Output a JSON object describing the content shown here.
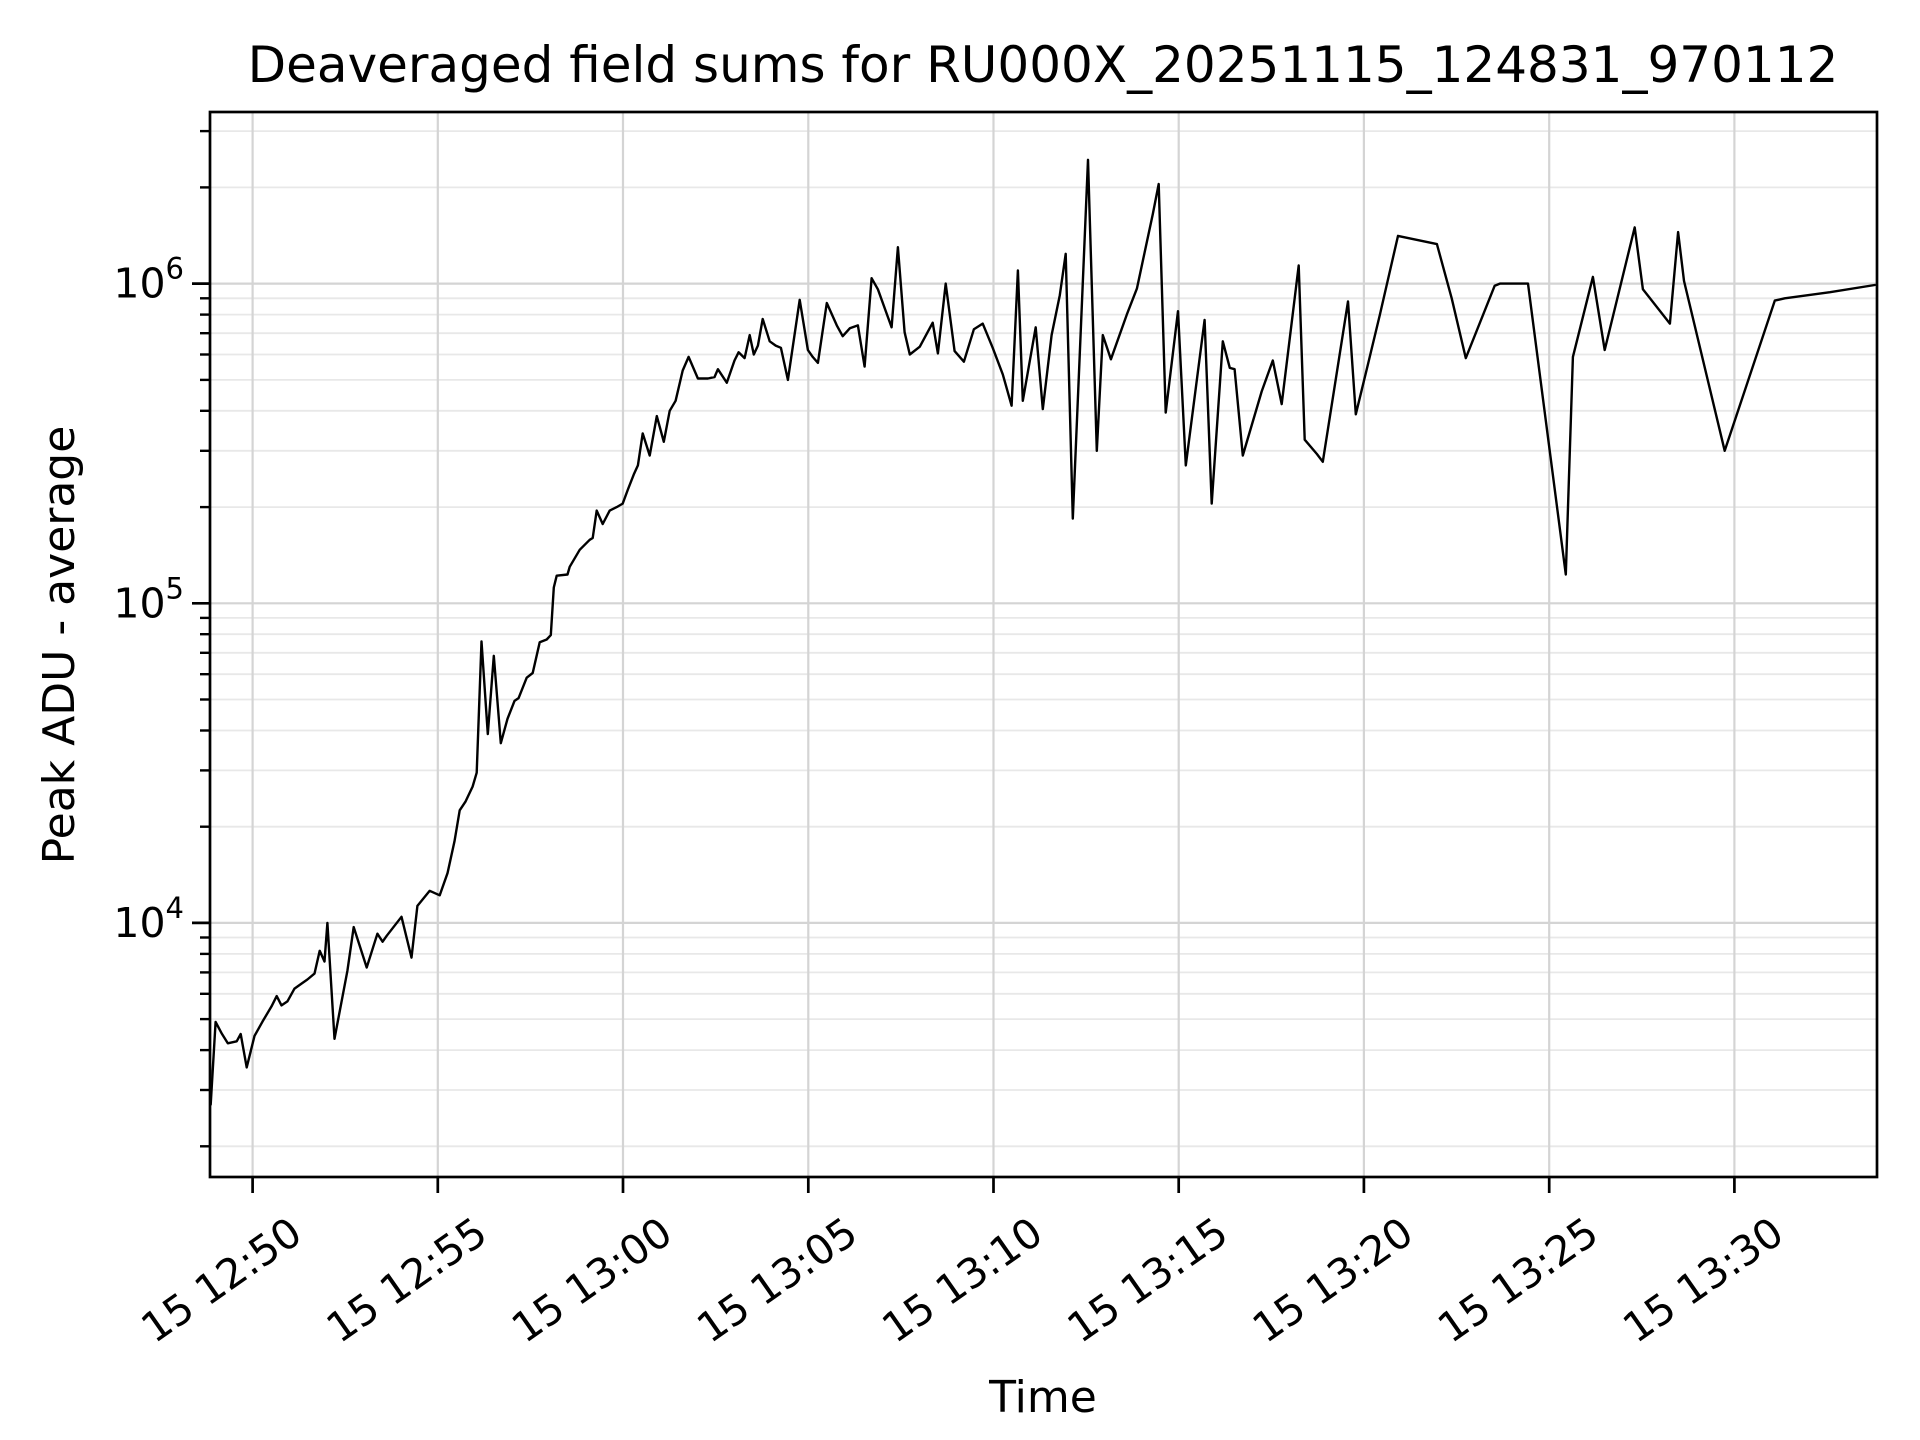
{
  "chart_data": {
    "type": "line",
    "title": "Deaveraged field sums for RU000X_20251115_124831_970112",
    "xlabel": "Time",
    "ylabel": "Peak ADU - average",
    "legend": null,
    "grid": true,
    "background_color": "#ffffff",
    "line_color": "#000000",
    "grid_major_color": "#d4d4d4",
    "grid_minor_color": "#e8e8e8",
    "y_scale": "log",
    "axis": {
      "t_min": 768.85,
      "t_max": 813.85,
      "log_min": 3.205,
      "log_max": 6.537
    },
    "x_ticks": [
      {
        "t": 770,
        "label": "15 12:50"
      },
      {
        "t": 775,
        "label": "15 12:55"
      },
      {
        "t": 780,
        "label": "15 13:00"
      },
      {
        "t": 785,
        "label": "15 13:05"
      },
      {
        "t": 790,
        "label": "15 13:10"
      },
      {
        "t": 795,
        "label": "15 13:15"
      },
      {
        "t": 800,
        "label": "15 13:20"
      },
      {
        "t": 805,
        "label": "15 13:25"
      },
      {
        "t": 810,
        "label": "15 13:30"
      }
    ],
    "y_ticks": [
      {
        "value": 10000,
        "base": "10",
        "exp": "4"
      },
      {
        "value": 100000,
        "base": "10",
        "exp": "5"
      },
      {
        "value": 1000000,
        "base": "10",
        "exp": "6"
      }
    ],
    "series": [
      {
        "name": "Peak ADU - average",
        "points": [
          [
            768.87,
            2700
          ],
          [
            769.0,
            4900
          ],
          [
            769.16,
            4520
          ],
          [
            769.33,
            4200
          ],
          [
            769.57,
            4260
          ],
          [
            769.68,
            4490
          ],
          [
            769.84,
            3530
          ],
          [
            770.05,
            4430
          ],
          [
            770.27,
            4920
          ],
          [
            770.51,
            5480
          ],
          [
            770.65,
            5900
          ],
          [
            770.78,
            5520
          ],
          [
            770.94,
            5680
          ],
          [
            771.13,
            6230
          ],
          [
            771.32,
            6460
          ],
          [
            771.48,
            6650
          ],
          [
            771.67,
            6940
          ],
          [
            771.81,
            8180
          ],
          [
            771.94,
            7570
          ],
          [
            772.02,
            10000
          ],
          [
            772.21,
            4340
          ],
          [
            772.56,
            7080
          ],
          [
            772.73,
            9700
          ],
          [
            773.08,
            7250
          ],
          [
            773.37,
            9250
          ],
          [
            773.51,
            8730
          ],
          [
            773.62,
            9110
          ],
          [
            774.02,
            10450
          ],
          [
            774.29,
            7790
          ],
          [
            774.45,
            11300
          ],
          [
            774.78,
            12600
          ],
          [
            775.05,
            12200
          ],
          [
            775.26,
            14300
          ],
          [
            775.45,
            18000
          ],
          [
            775.59,
            22500
          ],
          [
            775.75,
            24000
          ],
          [
            775.94,
            26700
          ],
          [
            776.05,
            29500
          ],
          [
            776.18,
            76000
          ],
          [
            776.35,
            39000
          ],
          [
            776.51,
            68500
          ],
          [
            776.7,
            36500
          ],
          [
            776.88,
            43500
          ],
          [
            777.07,
            49500
          ],
          [
            777.18,
            50500
          ],
          [
            777.4,
            58500
          ],
          [
            777.56,
            60500
          ],
          [
            777.75,
            75500
          ],
          [
            777.94,
            77000
          ],
          [
            778.05,
            79500
          ],
          [
            778.13,
            112000
          ],
          [
            778.21,
            122000
          ],
          [
            778.5,
            123000
          ],
          [
            778.56,
            130000
          ],
          [
            778.83,
            147000
          ],
          [
            779.1,
            158000
          ],
          [
            779.18,
            160000
          ],
          [
            779.29,
            195000
          ],
          [
            779.45,
            177000
          ],
          [
            779.64,
            195000
          ],
          [
            779.83,
            200000
          ],
          [
            779.99,
            205000
          ],
          [
            780.13,
            227000
          ],
          [
            780.29,
            253000
          ],
          [
            780.4,
            270000
          ],
          [
            780.53,
            340000
          ],
          [
            780.72,
            290000
          ],
          [
            780.91,
            385000
          ],
          [
            781.1,
            320000
          ],
          [
            781.26,
            400000
          ],
          [
            781.42,
            430000
          ],
          [
            781.61,
            535000
          ],
          [
            781.77,
            590000
          ],
          [
            782.02,
            505000
          ],
          [
            782.29,
            505000
          ],
          [
            782.47,
            510000
          ],
          [
            782.56,
            540000
          ],
          [
            782.8,
            490000
          ],
          [
            783.01,
            575000
          ],
          [
            783.12,
            610000
          ],
          [
            783.28,
            585000
          ],
          [
            783.42,
            690000
          ],
          [
            783.53,
            600000
          ],
          [
            783.64,
            640000
          ],
          [
            783.77,
            775000
          ],
          [
            783.96,
            660000
          ],
          [
            784.12,
            640000
          ],
          [
            784.26,
            630000
          ],
          [
            784.45,
            500000
          ],
          [
            784.77,
            890000
          ],
          [
            784.99,
            620000
          ],
          [
            785.12,
            590000
          ],
          [
            785.26,
            565000
          ],
          [
            785.5,
            870000
          ],
          [
            785.77,
            740000
          ],
          [
            785.93,
            685000
          ],
          [
            786.12,
            725000
          ],
          [
            786.34,
            740000
          ],
          [
            786.52,
            550000
          ],
          [
            786.71,
            1040000
          ],
          [
            786.88,
            960000
          ],
          [
            787.25,
            730000
          ],
          [
            787.42,
            1300000
          ],
          [
            787.6,
            705000
          ],
          [
            787.74,
            600000
          ],
          [
            788.01,
            635000
          ],
          [
            788.36,
            755000
          ],
          [
            788.5,
            605000
          ],
          [
            788.71,
            1000000
          ],
          [
            788.95,
            615000
          ],
          [
            789.2,
            570000
          ],
          [
            789.47,
            720000
          ],
          [
            789.71,
            750000
          ],
          [
            789.98,
            630000
          ],
          [
            790.25,
            520000
          ],
          [
            790.49,
            415000
          ],
          [
            790.66,
            1100000
          ],
          [
            790.79,
            430000
          ],
          [
            791.14,
            730000
          ],
          [
            791.33,
            405000
          ],
          [
            791.57,
            690000
          ],
          [
            791.79,
            920000
          ],
          [
            791.95,
            1240000
          ],
          [
            792.14,
            184000
          ],
          [
            792.55,
            2440000
          ],
          [
            792.79,
            300000
          ],
          [
            792.95,
            690000
          ],
          [
            793.17,
            580000
          ],
          [
            793.6,
            800000
          ],
          [
            793.87,
            965000
          ],
          [
            794.3,
            1650000
          ],
          [
            794.46,
            2050000
          ],
          [
            794.65,
            395000
          ],
          [
            794.98,
            820000
          ],
          [
            795.19,
            270000
          ],
          [
            795.7,
            770000
          ],
          [
            795.89,
            205000
          ],
          [
            796.19,
            660000
          ],
          [
            796.38,
            545000
          ],
          [
            796.51,
            540000
          ],
          [
            796.73,
            290000
          ],
          [
            797.24,
            460000
          ],
          [
            797.54,
            575000
          ],
          [
            797.78,
            420000
          ],
          [
            798.24,
            1140000
          ],
          [
            798.4,
            325000
          ],
          [
            798.73,
            293000
          ],
          [
            798.89,
            277000
          ],
          [
            799.57,
            880000
          ],
          [
            799.78,
            390000
          ],
          [
            800.11,
            560000
          ],
          [
            800.43,
            800000
          ],
          [
            800.92,
            1410000
          ],
          [
            801.97,
            1330000
          ],
          [
            802.37,
            900000
          ],
          [
            802.75,
            585000
          ],
          [
            803.53,
            985000
          ],
          [
            803.67,
            1000000
          ],
          [
            804.43,
            1000000
          ],
          [
            805.45,
            123000
          ],
          [
            805.64,
            590000
          ],
          [
            806.18,
            1050000
          ],
          [
            806.5,
            620000
          ],
          [
            807.31,
            1500000
          ],
          [
            807.53,
            960000
          ],
          [
            808.26,
            750000
          ],
          [
            808.48,
            1450000
          ],
          [
            808.64,
            1020000
          ],
          [
            809.74,
            300000
          ],
          [
            811.09,
            885000
          ],
          [
            811.36,
            900000
          ],
          [
            812.58,
            940000
          ],
          [
            813.79,
            990000
          ]
        ]
      }
    ]
  }
}
